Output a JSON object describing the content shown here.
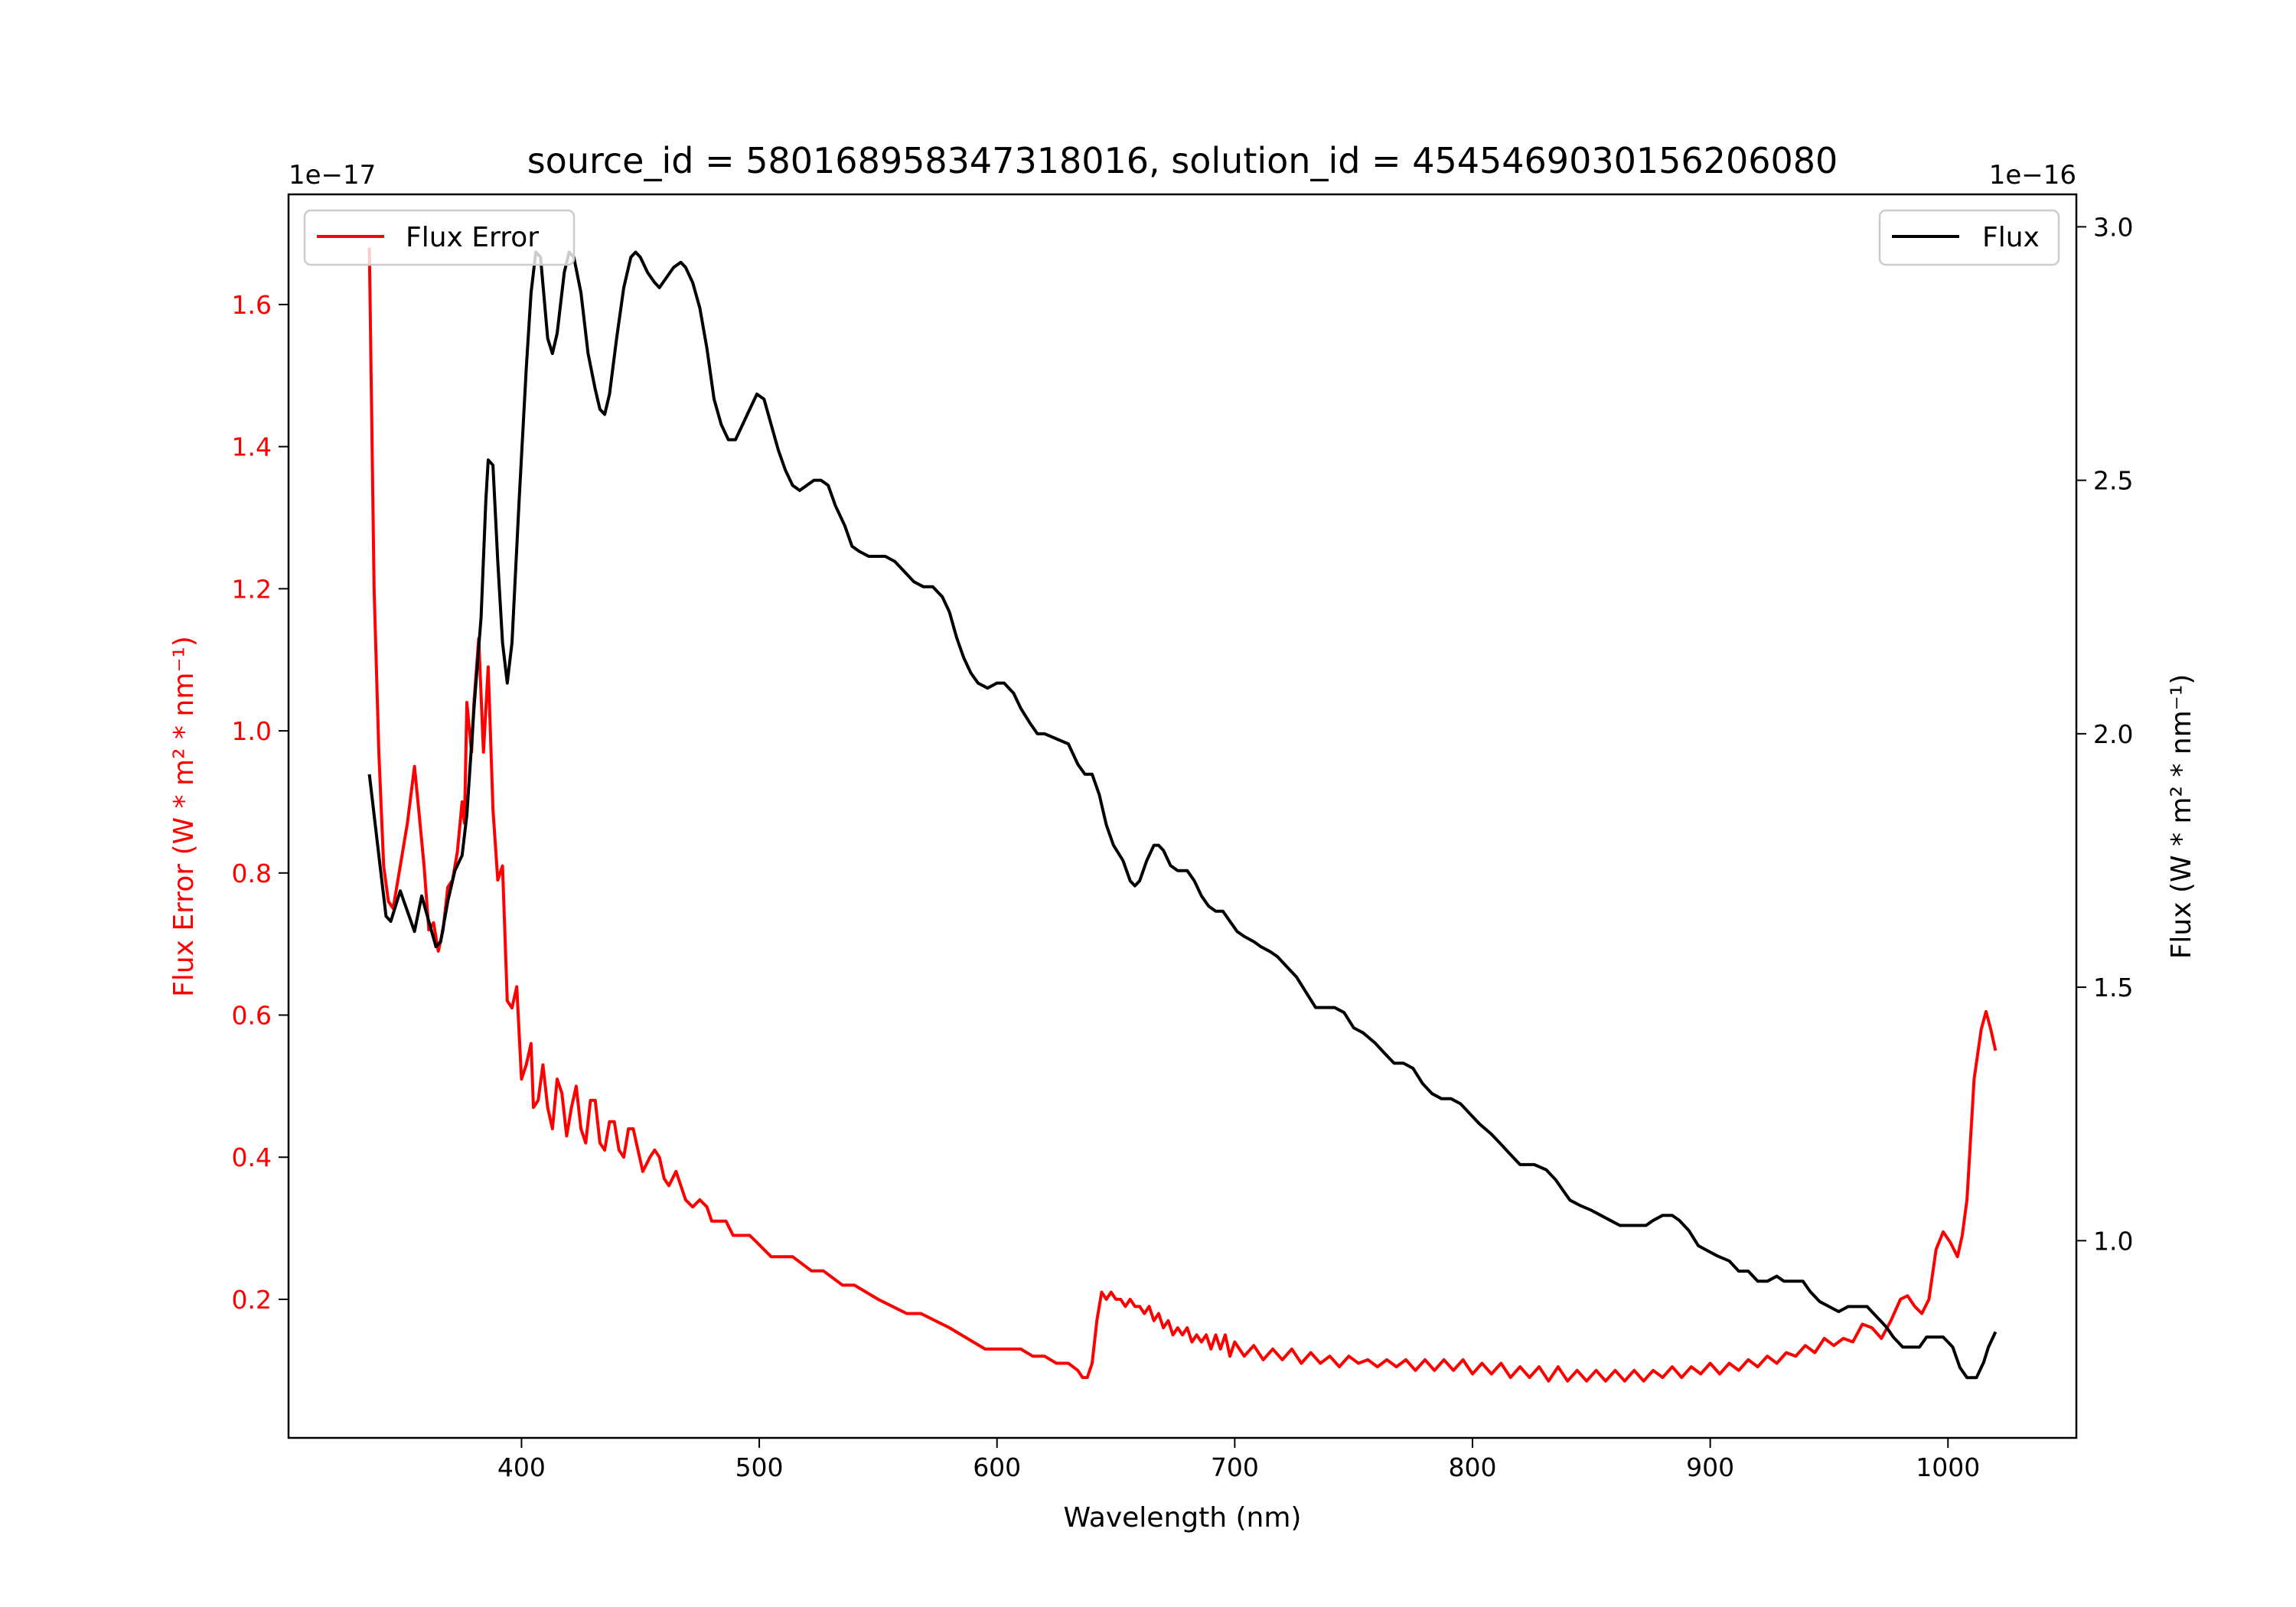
{
  "chart_data": {
    "type": "line",
    "title": "source_id = 5801689583473180​16, solution_id = 4545469030156206080",
    "xlabel": "Wavelength (nm)",
    "xlim": [
      302,
      1054
    ],
    "xticks": [
      400,
      500,
      600,
      700,
      800,
      900,
      1000
    ],
    "left_axis": {
      "label": "Flux Error (W * m² * nm⁻¹)",
      "offset_text": "1e−17",
      "ylim": [
        0.005,
        1.755
      ],
      "ticks": [
        0.2,
        0.4,
        0.6,
        0.8,
        1.0,
        1.2,
        1.4,
        1.6
      ],
      "color": "#ff0000"
    },
    "right_axis": {
      "label": "Flux (W * m² * nm⁻¹)",
      "offset_text": "1e−16",
      "ylim": [
        0.611,
        3.064
      ],
      "ticks": [
        1.0,
        1.5,
        2.0,
        2.5,
        3.0
      ],
      "color": "#000000"
    },
    "series": [
      {
        "name": "Flux Error",
        "axis": "left",
        "color": "#ff0000",
        "legend": "top-left",
        "x": [
          336,
          338,
          340,
          342,
          344,
          346,
          348,
          350,
          352,
          355,
          357,
          359,
          361,
          363,
          365,
          367,
          369,
          371,
          373,
          375,
          376,
          377,
          379,
          380,
          382,
          384,
          386,
          388,
          390,
          392,
          394,
          396,
          398,
          400,
          402,
          404,
          405,
          407,
          409,
          411,
          413,
          415,
          417,
          419,
          421,
          423,
          425,
          427,
          429,
          431,
          433,
          435,
          437,
          439,
          441,
          443,
          445,
          447,
          449,
          451,
          454,
          456,
          458,
          460,
          462,
          465,
          467,
          469,
          472,
          475,
          478,
          480,
          483,
          486,
          489,
          492,
          496,
          499,
          502,
          505,
          510,
          514,
          518,
          522,
          527,
          531,
          535,
          540,
          545,
          550,
          556,
          562,
          568,
          574,
          580,
          585,
          590,
          595,
          600,
          605,
          610,
          615,
          620,
          625,
          630,
          634,
          636,
          638,
          640,
          642,
          644,
          646,
          648,
          650,
          652,
          654,
          656,
          658,
          660,
          662,
          664,
          666,
          668,
          670,
          672,
          674,
          676,
          678,
          680,
          682,
          684,
          686,
          688,
          690,
          692,
          694,
          696,
          698,
          700,
          704,
          708,
          712,
          716,
          720,
          724,
          728,
          732,
          736,
          740,
          744,
          748,
          752,
          756,
          760,
          764,
          768,
          772,
          776,
          780,
          784,
          788,
          792,
          796,
          800,
          804,
          808,
          812,
          816,
          820,
          824,
          828,
          832,
          836,
          840,
          844,
          848,
          852,
          856,
          860,
          864,
          868,
          872,
          876,
          880,
          884,
          888,
          892,
          896,
          900,
          904,
          908,
          912,
          916,
          920,
          924,
          928,
          932,
          936,
          940,
          944,
          948,
          952,
          956,
          960,
          964,
          968,
          972,
          976,
          980,
          983,
          986,
          989,
          992,
          995,
          998,
          1001,
          1004,
          1006,
          1008,
          1011,
          1014,
          1016,
          1018,
          1020
        ],
        "y": [
          1.68,
          1.2,
          0.97,
          0.81,
          0.76,
          0.75,
          0.79,
          0.83,
          0.87,
          0.95,
          0.88,
          0.81,
          0.72,
          0.73,
          0.69,
          0.72,
          0.78,
          0.79,
          0.83,
          0.9,
          0.87,
          1.04,
          0.97,
          1.04,
          1.13,
          0.97,
          1.09,
          0.89,
          0.79,
          0.81,
          0.62,
          0.61,
          0.64,
          0.51,
          0.53,
          0.56,
          0.47,
          0.48,
          0.53,
          0.47,
          0.44,
          0.51,
          0.49,
          0.43,
          0.47,
          0.5,
          0.44,
          0.42,
          0.48,
          0.48,
          0.42,
          0.41,
          0.45,
          0.45,
          0.41,
          0.4,
          0.44,
          0.44,
          0.41,
          0.38,
          0.4,
          0.41,
          0.4,
          0.37,
          0.36,
          0.38,
          0.36,
          0.34,
          0.33,
          0.34,
          0.33,
          0.31,
          0.31,
          0.31,
          0.29,
          0.29,
          0.29,
          0.28,
          0.27,
          0.26,
          0.26,
          0.26,
          0.25,
          0.24,
          0.24,
          0.23,
          0.22,
          0.22,
          0.21,
          0.2,
          0.19,
          0.18,
          0.18,
          0.17,
          0.16,
          0.15,
          0.14,
          0.13,
          0.13,
          0.13,
          0.13,
          0.12,
          0.12,
          0.11,
          0.11,
          0.1,
          0.09,
          0.09,
          0.11,
          0.17,
          0.21,
          0.2,
          0.21,
          0.2,
          0.2,
          0.19,
          0.2,
          0.19,
          0.19,
          0.18,
          0.19,
          0.17,
          0.18,
          0.16,
          0.17,
          0.15,
          0.16,
          0.15,
          0.16,
          0.14,
          0.15,
          0.14,
          0.15,
          0.13,
          0.15,
          0.13,
          0.15,
          0.12,
          0.14,
          0.12,
          0.135,
          0.115,
          0.13,
          0.115,
          0.13,
          0.11,
          0.125,
          0.11,
          0.12,
          0.105,
          0.12,
          0.11,
          0.115,
          0.105,
          0.115,
          0.105,
          0.115,
          0.1,
          0.115,
          0.1,
          0.115,
          0.1,
          0.115,
          0.095,
          0.11,
          0.095,
          0.11,
          0.09,
          0.105,
          0.09,
          0.105,
          0.085,
          0.105,
          0.085,
          0.1,
          0.085,
          0.1,
          0.085,
          0.1,
          0.085,
          0.1,
          0.085,
          0.1,
          0.09,
          0.105,
          0.09,
          0.105,
          0.095,
          0.11,
          0.095,
          0.11,
          0.1,
          0.115,
          0.105,
          0.12,
          0.11,
          0.125,
          0.12,
          0.135,
          0.125,
          0.145,
          0.135,
          0.145,
          0.14,
          0.165,
          0.16,
          0.145,
          0.17,
          0.2,
          0.205,
          0.19,
          0.18,
          0.2,
          0.27,
          0.295,
          0.28,
          0.26,
          0.29,
          0.34,
          0.51,
          0.58,
          0.605,
          0.58,
          0.55
        ]
      },
      {
        "name": "Flux",
        "axis": "right",
        "color": "#000000",
        "legend": "top-right",
        "x": [
          336,
          340,
          343,
          345,
          349,
          352,
          355,
          358,
          361,
          364,
          366,
          369,
          372,
          375,
          377,
          380,
          383,
          385,
          386,
          388,
          390,
          392,
          394,
          396,
          399,
          402,
          404,
          406,
          408,
          411,
          413,
          415,
          418,
          420,
          422,
          425,
          428,
          431,
          433,
          435,
          437,
          440,
          443,
          446,
          448,
          450,
          453,
          456,
          458,
          461,
          464,
          467,
          469,
          472,
          475,
          478,
          481,
          484,
          487,
          490,
          493,
          496,
          499,
          502,
          505,
          508,
          511,
          514,
          517,
          520,
          523,
          526,
          529,
          532,
          536,
          539,
          542,
          546,
          550,
          553,
          557,
          561,
          565,
          569,
          573,
          577,
          580,
          583,
          586,
          589,
          592,
          596,
          600,
          603,
          607,
          610,
          614,
          617,
          620,
          625,
          630,
          634,
          637,
          640,
          643,
          646,
          649,
          653,
          656,
          658,
          660,
          663,
          666,
          668,
          670,
          673,
          676,
          680,
          683,
          686,
          689,
          692,
          695,
          698,
          701,
          704,
          708,
          711,
          715,
          718,
          722,
          726,
          730,
          734,
          738,
          742,
          746,
          750,
          754,
          759,
          763,
          767,
          771,
          775,
          779,
          783,
          787,
          791,
          795,
          799,
          803,
          808,
          812,
          816,
          820,
          826,
          831,
          835,
          838,
          841,
          845,
          850,
          854,
          858,
          862,
          865,
          869,
          873,
          876,
          880,
          884,
          887,
          891,
          895,
          899,
          903,
          908,
          912,
          916,
          920,
          924,
          928,
          931,
          935,
          939,
          942,
          946,
          950,
          954,
          958,
          962,
          966,
          970,
          974,
          977,
          981,
          985,
          988,
          991,
          995,
          998,
          1002,
          1005,
          1008,
          1012,
          1015,
          1017,
          1020
        ],
        "y": [
          1.92,
          1.76,
          1.64,
          1.63,
          1.69,
          1.65,
          1.61,
          1.68,
          1.63,
          1.58,
          1.59,
          1.67,
          1.73,
          1.76,
          1.84,
          2.05,
          2.23,
          2.46,
          2.54,
          2.53,
          2.34,
          2.18,
          2.1,
          2.18,
          2.46,
          2.72,
          2.87,
          2.95,
          2.94,
          2.78,
          2.75,
          2.79,
          2.91,
          2.95,
          2.94,
          2.87,
          2.75,
          2.68,
          2.64,
          2.63,
          2.67,
          2.78,
          2.88,
          2.94,
          2.95,
          2.94,
          2.91,
          2.89,
          2.88,
          2.9,
          2.92,
          2.93,
          2.92,
          2.89,
          2.84,
          2.76,
          2.66,
          2.61,
          2.58,
          2.58,
          2.61,
          2.64,
          2.67,
          2.66,
          2.61,
          2.56,
          2.52,
          2.49,
          2.48,
          2.49,
          2.5,
          2.5,
          2.49,
          2.45,
          2.41,
          2.37,
          2.36,
          2.35,
          2.35,
          2.35,
          2.34,
          2.32,
          2.3,
          2.29,
          2.29,
          2.27,
          2.24,
          2.19,
          2.15,
          2.12,
          2.1,
          2.09,
          2.1,
          2.1,
          2.08,
          2.05,
          2.02,
          2.0,
          2.0,
          1.99,
          1.98,
          1.94,
          1.92,
          1.92,
          1.88,
          1.82,
          1.78,
          1.75,
          1.71,
          1.7,
          1.71,
          1.75,
          1.78,
          1.78,
          1.77,
          1.74,
          1.73,
          1.73,
          1.71,
          1.68,
          1.66,
          1.65,
          1.65,
          1.63,
          1.61,
          1.6,
          1.59,
          1.58,
          1.57,
          1.56,
          1.54,
          1.52,
          1.49,
          1.46,
          1.46,
          1.46,
          1.45,
          1.42,
          1.41,
          1.39,
          1.37,
          1.35,
          1.35,
          1.34,
          1.31,
          1.29,
          1.28,
          1.28,
          1.27,
          1.25,
          1.23,
          1.21,
          1.19,
          1.17,
          1.15,
          1.15,
          1.14,
          1.12,
          1.1,
          1.08,
          1.07,
          1.06,
          1.05,
          1.04,
          1.03,
          1.03,
          1.03,
          1.03,
          1.04,
          1.05,
          1.05,
          1.04,
          1.02,
          0.99,
          0.98,
          0.97,
          0.96,
          0.94,
          0.94,
          0.92,
          0.92,
          0.93,
          0.92,
          0.92,
          0.92,
          0.9,
          0.88,
          0.87,
          0.86,
          0.87,
          0.87,
          0.87,
          0.85,
          0.83,
          0.81,
          0.79,
          0.79,
          0.79,
          0.81,
          0.81,
          0.81,
          0.79,
          0.75,
          0.73,
          0.73,
          0.76,
          0.79,
          0.82
        ]
      }
    ]
  }
}
